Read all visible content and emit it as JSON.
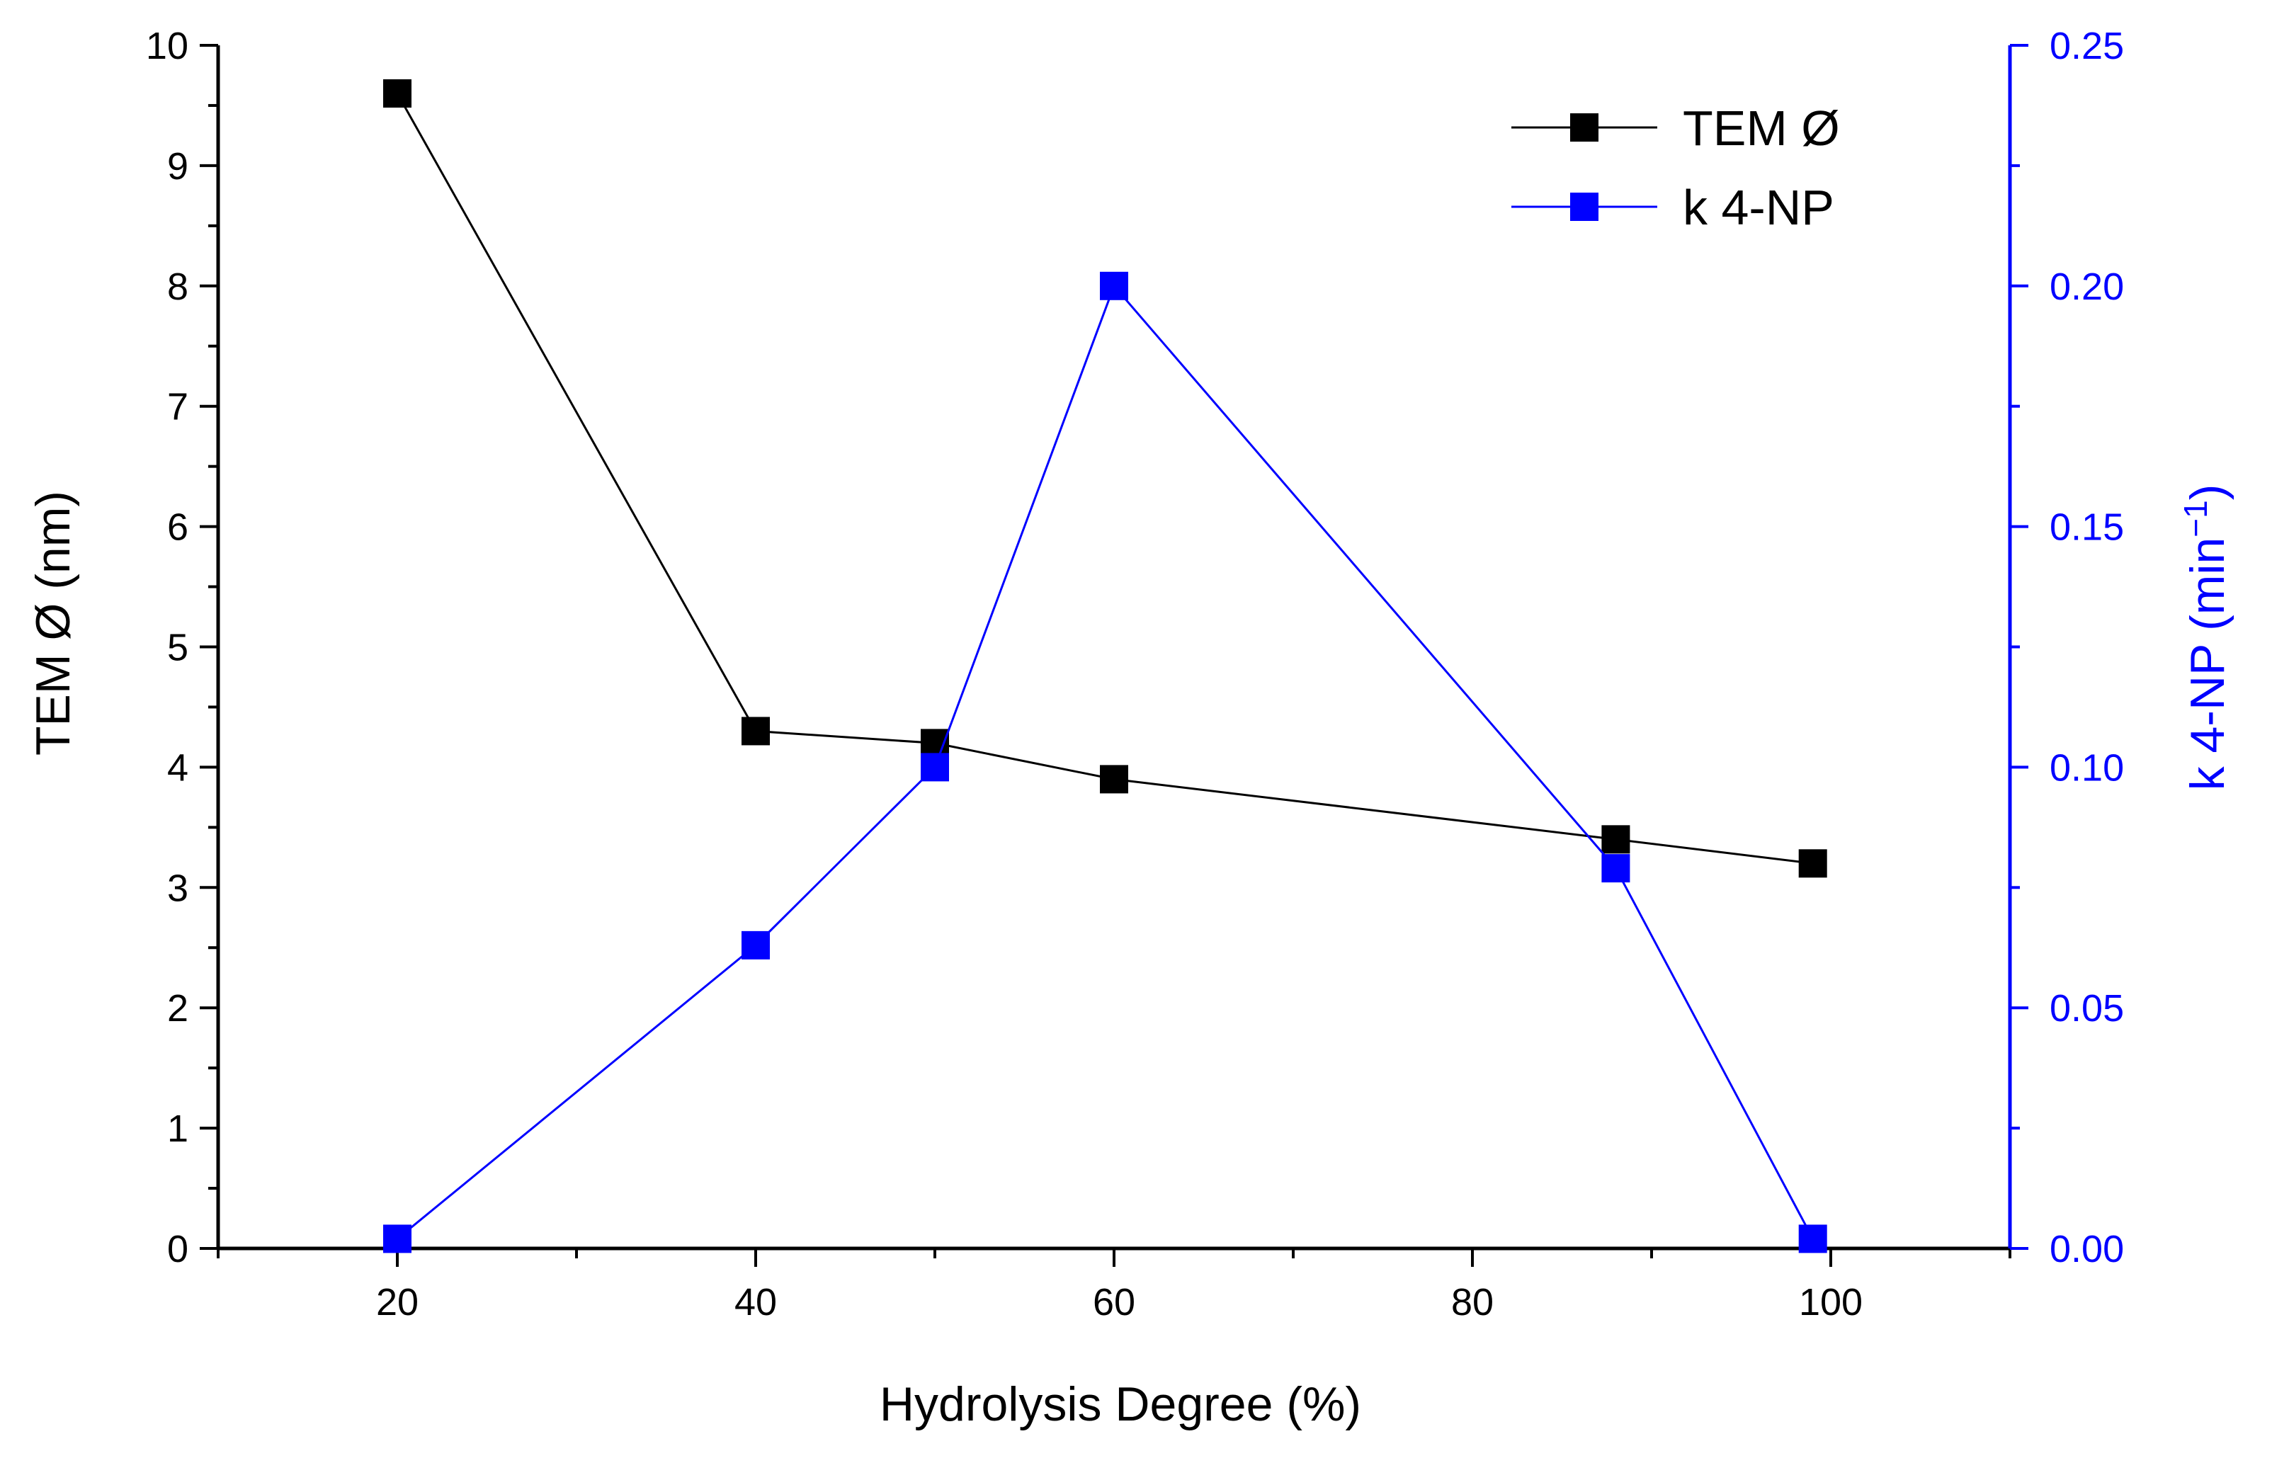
{
  "chart_data": {
    "type": "line",
    "title": "",
    "xlabel": "Hydrolysis Degree (%)",
    "ylabel_left": "TEM Ø (nm)",
    "ylabel_right_main": "k 4-NP (min",
    "ylabel_right_sup": "−1",
    "ylabel_right_close": ")",
    "xlim": [
      10,
      110
    ],
    "xticks": [
      20,
      40,
      60,
      80,
      100
    ],
    "xtick_labels": [
      "20",
      "40",
      "60",
      "80",
      "100"
    ],
    "ylim_left": [
      0,
      10
    ],
    "yticks_left": [
      0,
      1,
      2,
      3,
      4,
      5,
      6,
      7,
      8,
      9,
      10
    ],
    "ytick_labels_left": [
      "0",
      "1",
      "2",
      "3",
      "4",
      "5",
      "6",
      "7",
      "8",
      "9",
      "10"
    ],
    "ylim_right": [
      0,
      0.25
    ],
    "yticks_right": [
      0,
      0.05,
      0.1,
      0.15,
      0.2,
      0.25
    ],
    "ytick_labels_right": [
      "0.00",
      "0.05",
      "0.10",
      "0.15",
      "0.20",
      "0.25"
    ],
    "grid": false,
    "legend_position": "top-right",
    "series": [
      {
        "name": "TEM Ø",
        "axis": "left",
        "color": "#000000",
        "marker": "square",
        "x": [
          20,
          40,
          50,
          60,
          88,
          99
        ],
        "values": [
          9.6,
          4.3,
          4.2,
          3.9,
          3.4,
          3.2
        ]
      },
      {
        "name": "k 4-NP",
        "axis": "right",
        "color": "#0000ff",
        "marker": "square",
        "x": [
          20,
          40,
          50,
          60,
          88,
          99
        ],
        "values": [
          0.002,
          0.063,
          0.1,
          0.2,
          0.079,
          0.002
        ]
      }
    ]
  }
}
